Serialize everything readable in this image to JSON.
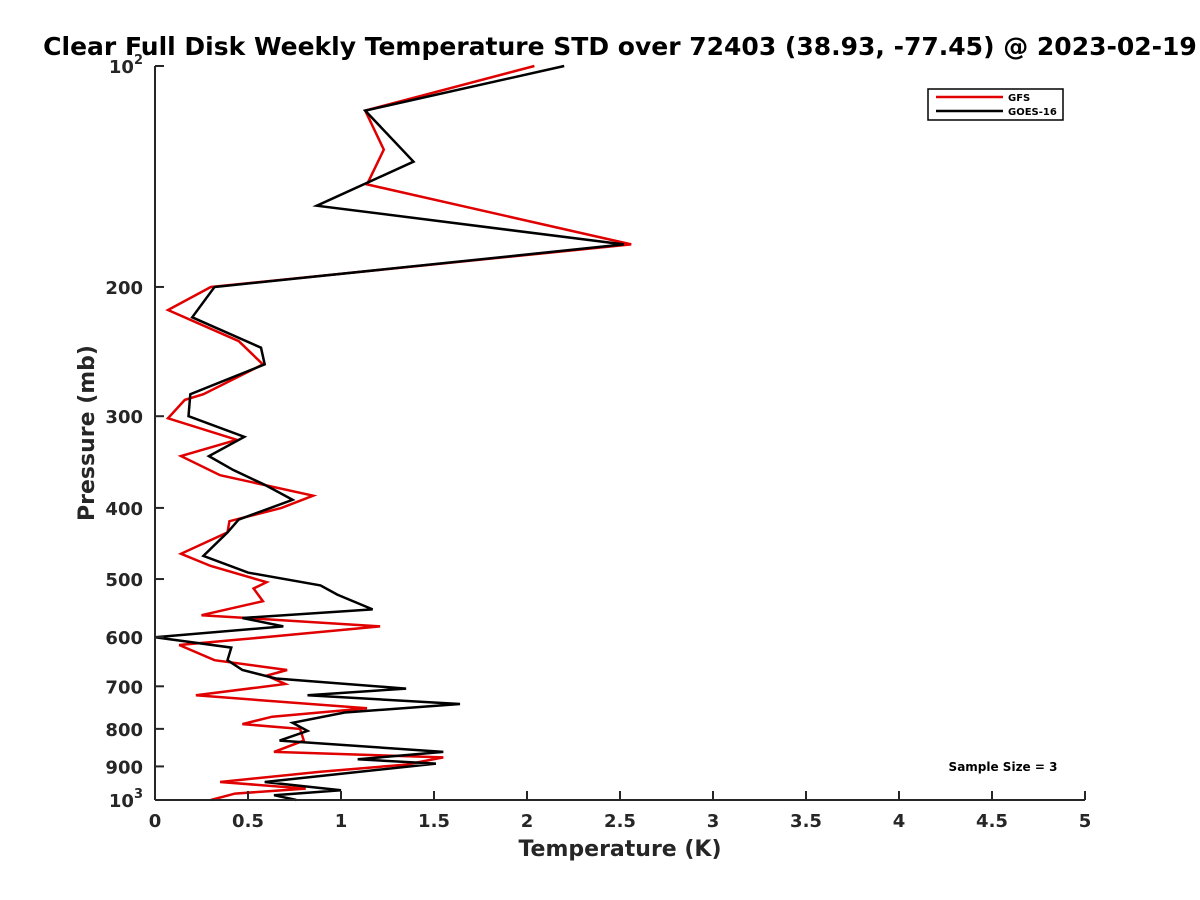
{
  "chart_data": {
    "type": "line",
    "title": "Clear Full Disk Weekly Temperature STD over 72403 (38.93, -77.45) @ 2023-02-19",
    "xlabel": "Temperature (K)",
    "ylabel": "Pressure (mb)",
    "xlim": [
      0,
      5
    ],
    "ylim": [
      100,
      1000
    ],
    "y_scale": "log",
    "y_reversed": true,
    "grid": false,
    "legend_placement": "top-right",
    "x_ticks": [
      0,
      0.5,
      1,
      1.5,
      2,
      2.5,
      3,
      3.5,
      4,
      4.5,
      5
    ],
    "x_tick_labels": [
      "0",
      "0.5",
      "1",
      "1.5",
      "2",
      "2.5",
      "3",
      "3.5",
      "4",
      "4.5",
      "5"
    ],
    "y_ticks": [
      100,
      200,
      300,
      400,
      500,
      600,
      700,
      800,
      900,
      1000
    ],
    "y_tick_labels": [
      {
        "base": "10",
        "exp": "2"
      },
      {
        "base": "200",
        "exp": ""
      },
      {
        "base": "300",
        "exp": ""
      },
      {
        "base": "400",
        "exp": ""
      },
      {
        "base": "500",
        "exp": ""
      },
      {
        "base": "600",
        "exp": ""
      },
      {
        "base": "700",
        "exp": ""
      },
      {
        "base": "800",
        "exp": ""
      },
      {
        "base": "900",
        "exp": ""
      },
      {
        "base": "10",
        "exp": "3"
      }
    ],
    "annotation": "Sample Size = 3",
    "series": [
      {
        "name": "GFS",
        "color": "#e00000",
        "points": [
          [
            2.04,
            100
          ],
          [
            1.13,
            115
          ],
          [
            1.23,
            130
          ],
          [
            1.14,
            145
          ],
          [
            2.56,
            175
          ],
          [
            0.3,
            200
          ],
          [
            0.07,
            215
          ],
          [
            0.45,
            237
          ],
          [
            0.58,
            255
          ],
          [
            0.26,
            280
          ],
          [
            0.16,
            285
          ],
          [
            0.07,
            302
          ],
          [
            0.44,
            323
          ],
          [
            0.14,
            340
          ],
          [
            0.35,
            361
          ],
          [
            0.85,
            385
          ],
          [
            0.68,
            400
          ],
          [
            0.4,
            417
          ],
          [
            0.39,
            432
          ],
          [
            0.14,
            462
          ],
          [
            0.3,
            480
          ],
          [
            0.6,
            505
          ],
          [
            0.53,
            515
          ],
          [
            0.58,
            536
          ],
          [
            0.25,
            560
          ],
          [
            1.21,
            580
          ],
          [
            0.44,
            605
          ],
          [
            0.13,
            615
          ],
          [
            0.32,
            645
          ],
          [
            0.71,
            665
          ],
          [
            0.6,
            677
          ],
          [
            0.7,
            695
          ],
          [
            0.22,
            720
          ],
          [
            1.14,
            750
          ],
          [
            0.63,
            770
          ],
          [
            0.47,
            788
          ],
          [
            0.78,
            800
          ],
          [
            0.8,
            830
          ],
          [
            0.64,
            860
          ],
          [
            1.55,
            875
          ],
          [
            1.35,
            895
          ],
          [
            0.89,
            915
          ],
          [
            0.35,
            945
          ],
          [
            0.81,
            965
          ],
          [
            0.43,
            980
          ],
          [
            0.3,
            1000
          ]
        ]
      },
      {
        "name": "GOES-16",
        "color": "#000000",
        "points": [
          [
            2.2,
            100
          ],
          [
            1.13,
            115
          ],
          [
            1.39,
            135
          ],
          [
            0.87,
            155
          ],
          [
            2.52,
            175
          ],
          [
            0.32,
            200
          ],
          [
            0.2,
            220
          ],
          [
            0.57,
            242
          ],
          [
            0.59,
            255
          ],
          [
            0.19,
            280
          ],
          [
            0.18,
            300
          ],
          [
            0.48,
            320
          ],
          [
            0.29,
            340
          ],
          [
            0.42,
            355
          ],
          [
            0.59,
            372
          ],
          [
            0.74,
            390
          ],
          [
            0.45,
            415
          ],
          [
            0.39,
            432
          ],
          [
            0.26,
            465
          ],
          [
            0.5,
            490
          ],
          [
            0.89,
            510
          ],
          [
            0.98,
            525
          ],
          [
            1.17,
            550
          ],
          [
            0.47,
            565
          ],
          [
            0.69,
            580
          ],
          [
            0.0,
            600
          ],
          [
            0.41,
            620
          ],
          [
            0.39,
            645
          ],
          [
            0.47,
            665
          ],
          [
            0.65,
            683
          ],
          [
            1.35,
            705
          ],
          [
            0.82,
            720
          ],
          [
            1.64,
            740
          ],
          [
            1.02,
            760
          ],
          [
            0.74,
            785
          ],
          [
            0.82,
            805
          ],
          [
            0.67,
            830
          ],
          [
            1.55,
            860
          ],
          [
            1.09,
            880
          ],
          [
            1.51,
            892
          ],
          [
            0.59,
            945
          ],
          [
            1.0,
            970
          ],
          [
            0.64,
            985
          ],
          [
            0.76,
            1000
          ]
        ]
      }
    ]
  }
}
